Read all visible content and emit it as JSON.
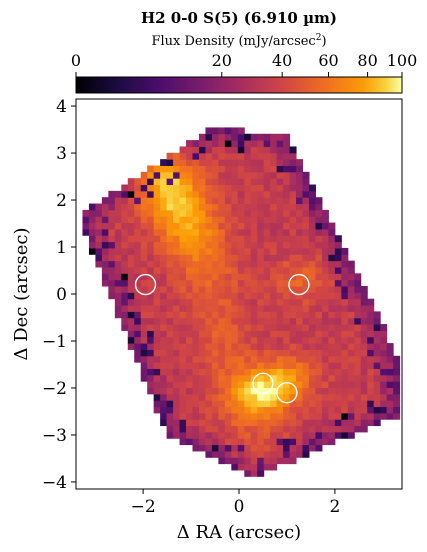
{
  "chart_data": {
    "type": "heatmap",
    "title": "H2 0-0 S(5) (6.910 µm)",
    "colorbar_label": "Flux Density (mJy/arcsec",
    "colorbar_label_sup": "2",
    "colorbar_label_tail": ")",
    "colormap": "inferno",
    "colorbar_scale": "power (non-linear)",
    "colorbar_ticks": [
      0,
      20,
      40,
      60,
      80,
      100
    ],
    "colorbar_tick_labels": [
      "0",
      "20",
      "40",
      "60",
      "80",
      "100"
    ],
    "xlabel": "Δ RA (arcsec)",
    "ylabel": "Δ Dec (arcsec)",
    "xlim": [
      -3.4,
      3.4
    ],
    "ylim": [
      -4.15,
      4.15
    ],
    "xticks": [
      -2,
      0,
      2
    ],
    "xtick_labels": [
      "−2",
      "0",
      "2"
    ],
    "yticks": [
      4,
      3,
      2,
      1,
      0,
      -1,
      -2,
      -3,
      -4
    ],
    "ytick_labels": [
      "4",
      "3",
      "2",
      "1",
      "0",
      "−1",
      "−2",
      "−3",
      "−4"
    ],
    "markers": [
      {
        "x": -1.95,
        "y": 0.2
      },
      {
        "x": 1.25,
        "y": 0.2
      },
      {
        "x": 0.5,
        "y": -1.9
      },
      {
        "x": 1.0,
        "y": -2.1
      }
    ],
    "emission_features": [
      {
        "x": -1.45,
        "y": 2.25,
        "value": 100
      },
      {
        "x": 0.65,
        "y": -2.0,
        "value": 100
      },
      {
        "x": 1.25,
        "y": 0.3,
        "value": 55
      }
    ],
    "background_level": 35
  },
  "colors": {
    "background": "#ffffff",
    "marker": "#ffffff"
  }
}
